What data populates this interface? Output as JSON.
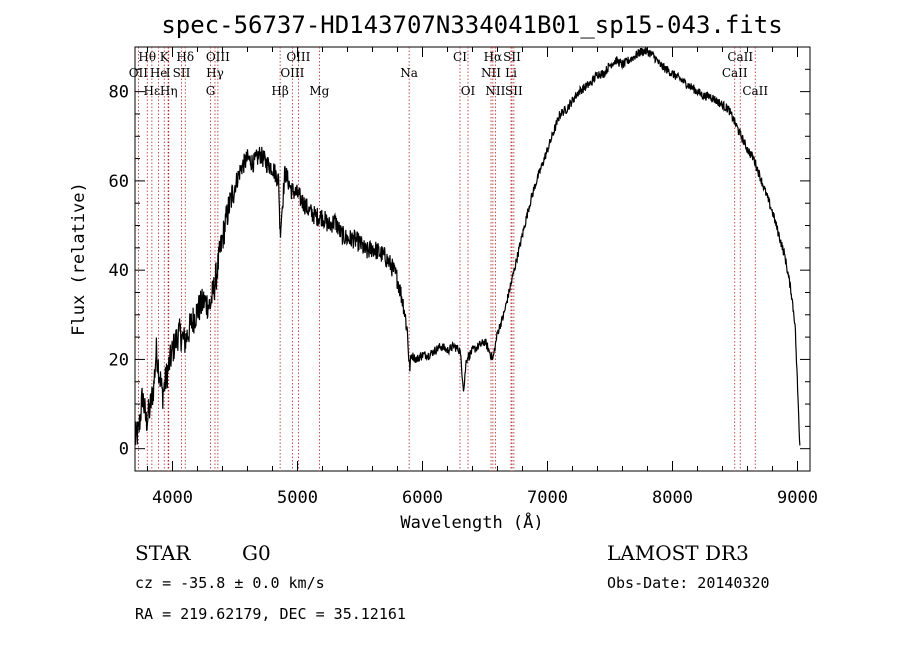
{
  "chart_data": {
    "type": "line",
    "title": "spec-56737-HD143707N334041B01_sp15-043.fits",
    "xlabel": "Wavelength (Å)",
    "ylabel": "Flux (relative)",
    "xlim": [
      3700,
      9100
    ],
    "ylim": [
      -5,
      90
    ],
    "xticks": [
      4000,
      5000,
      6000,
      7000,
      8000,
      9000
    ],
    "yticks": [
      0,
      20,
      40,
      60,
      80
    ],
    "xtick_labels": [
      "4000",
      "5000",
      "6000",
      "7000",
      "8000",
      "9000"
    ],
    "ytick_labels": [
      "0",
      "20",
      "40",
      "60",
      "80"
    ],
    "series": [
      {
        "name": "flux",
        "x": [
          3700,
          3730,
          3760,
          3790,
          3820,
          3850,
          3870,
          3890,
          3920,
          3950,
          4000,
          4050,
          4100,
          4150,
          4200,
          4250,
          4300,
          4340,
          4380,
          4420,
          4450,
          4500,
          4550,
          4600,
          4650,
          4700,
          4750,
          4800,
          4850,
          4860,
          4900,
          4950,
          5000,
          5050,
          5100,
          5150,
          5200,
          5250,
          5300,
          5350,
          5400,
          5450,
          5500,
          5550,
          5600,
          5650,
          5700,
          5750,
          5800,
          5850,
          5880,
          5895,
          5910,
          5950,
          6000,
          6050,
          6100,
          6150,
          6200,
          6250,
          6300,
          6330,
          6350,
          6400,
          6450,
          6500,
          6563,
          6600,
          6650,
          6700,
          6750,
          6800,
          6850,
          6900,
          6950,
          7000,
          7050,
          7100,
          7150,
          7200,
          7250,
          7300,
          7350,
          7400,
          7450,
          7500,
          7550,
          7600,
          7650,
          7700,
          7750,
          7800,
          7850,
          7900,
          7950,
          8000,
          8050,
          8100,
          8150,
          8200,
          8250,
          8300,
          8350,
          8400,
          8450,
          8500,
          8550,
          8600,
          8650,
          8700,
          8750,
          8800,
          8850,
          8900,
          8950,
          8980,
          9000,
          9020
        ],
        "values": [
          2,
          4,
          12,
          6,
          9,
          14,
          22,
          18,
          12,
          16,
          22,
          26,
          24,
          28,
          31,
          33,
          32,
          37,
          44,
          50,
          54,
          59,
          63,
          65,
          64,
          66,
          64,
          63,
          60,
          48,
          62,
          58,
          57,
          55,
          53,
          52,
          52,
          50,
          51,
          48,
          47,
          47,
          46,
          44,
          45,
          44,
          43,
          41,
          38,
          32,
          26,
          18,
          21,
          20,
          21,
          21,
          22,
          23,
          22,
          23,
          22,
          13,
          20,
          22,
          23,
          24,
          20,
          26,
          30,
          36,
          42,
          48,
          54,
          59,
          63,
          67,
          71,
          75,
          76,
          78,
          80,
          81,
          82,
          84,
          84,
          86,
          87,
          86,
          87,
          88,
          89,
          89,
          88,
          86,
          85,
          84,
          83,
          82,
          81,
          80,
          79,
          79,
          78,
          77,
          76,
          73,
          70,
          67,
          65,
          61,
          57,
          53,
          48,
          43,
          35,
          28,
          14,
          0
        ]
      }
    ],
    "spectral_lines": [
      {
        "label": "Hθ",
        "wavelength": 3798,
        "row": 1
      },
      {
        "label": "K",
        "wavelength": 3934,
        "row": 1
      },
      {
        "label": "Hδ",
        "wavelength": 4102,
        "row": 1
      },
      {
        "label": "OIII",
        "wavelength": 4363,
        "row": 1
      },
      {
        "label": "OIII",
        "wavelength": 5007,
        "row": 1
      },
      {
        "label": "CI",
        "wavelength": 6300,
        "row": 1
      },
      {
        "label": "Hα",
        "wavelength": 6563,
        "row": 1
      },
      {
        "label": "SII",
        "wavelength": 6716,
        "row": 1
      },
      {
        "label": "CaII",
        "wavelength": 8542,
        "row": 1
      },
      {
        "label": "OII",
        "wavelength": 3727,
        "row": 2
      },
      {
        "label": "He",
        "wavelength": 3889,
        "row": 2
      },
      {
        "label": "I",
        "wavelength": 3965,
        "row": 2
      },
      {
        "label": "SII",
        "wavelength": 4072,
        "row": 2
      },
      {
        "label": "Hγ",
        "wavelength": 4340,
        "row": 2
      },
      {
        "label": "OIII",
        "wavelength": 4959,
        "row": 2
      },
      {
        "label": "Na",
        "wavelength": 5893,
        "row": 2
      },
      {
        "label": "NII",
        "wavelength": 6548,
        "row": 2
      },
      {
        "label": "Li",
        "wavelength": 6708,
        "row": 2
      },
      {
        "label": "CaII",
        "wavelength": 8498,
        "row": 2
      },
      {
        "label": "Hε",
        "wavelength": 3835,
        "row": 3
      },
      {
        "label": "Hη",
        "wavelength": 3970,
        "row": 3
      },
      {
        "label": "G",
        "wavelength": 4304,
        "row": 3
      },
      {
        "label": "Hβ",
        "wavelength": 4861,
        "row": 3
      },
      {
        "label": "Mg",
        "wavelength": 5175,
        "row": 3
      },
      {
        "label": "OI",
        "wavelength": 6364,
        "row": 3
      },
      {
        "label": "NII",
        "wavelength": 6583,
        "row": 3
      },
      {
        "label": "SII",
        "wavelength": 6731,
        "row": 3
      },
      {
        "label": "CaII",
        "wavelength": 8662,
        "row": 3
      }
    ]
  },
  "info": {
    "object_type": "STAR",
    "subclass": "G0",
    "survey": "LAMOST DR3",
    "redshift_line": "cz = -35.8 ± 0.0 km/s",
    "obs_date_line": "Obs-Date: 20140320",
    "coords_line": "RA = 219.62179, DEC =  35.12161"
  }
}
